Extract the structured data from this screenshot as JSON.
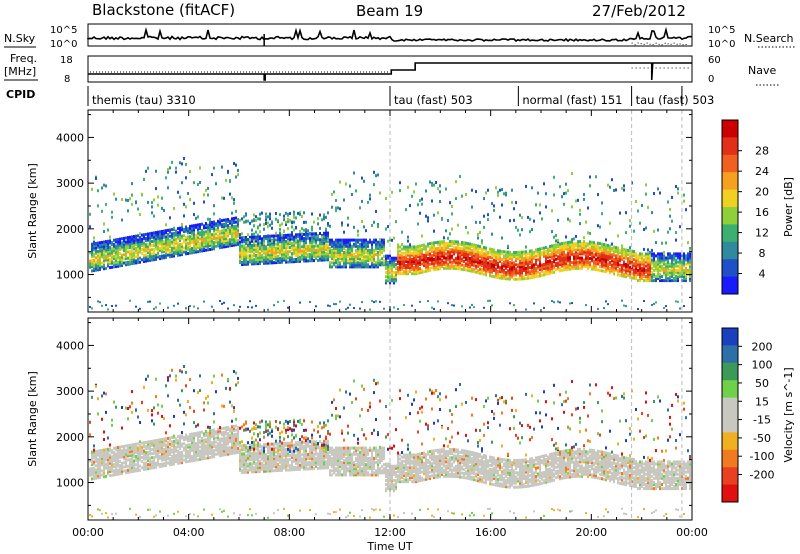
{
  "header": {
    "station": "Blackstone (fitACF)",
    "beam": "Beam 19",
    "date": "27/Feb/2012"
  },
  "top_panels": {
    "nsky_label": "N.Sky",
    "nsky_ticks": [
      "10^5",
      "10^0"
    ],
    "nsky_right_ticks": [
      "10^5",
      "10^0"
    ],
    "nsearch_label": "N.Search",
    "freq_label": "Freq.",
    "freq_unit": "[MHz]",
    "freq_ticks": [
      "18",
      "8"
    ],
    "nave_ticks": [
      "60",
      "0"
    ],
    "nave_label": "Nave",
    "cpid_label": "CPID"
  },
  "cpid_segments": [
    {
      "label": "themis (tau) 3310",
      "start": 0.0
    },
    {
      "label": "tau (fast) 503",
      "start": 12.0
    },
    {
      "label": "normal (fast) 151",
      "start": 17.1
    },
    {
      "label": "tau (fast) 503",
      "start": 21.6
    }
  ],
  "chart_data": [
    {
      "type": "heatmap",
      "name": "power",
      "ylabel": "Slant Range [km]",
      "ylim": [
        180,
        4600
      ],
      "yticks": [
        "1000",
        "2000",
        "3000",
        "4000"
      ],
      "xlim": [
        0,
        24
      ],
      "colorbar": {
        "label": "Power [dB]",
        "ticks": [
          "4",
          "8",
          "12",
          "16",
          "20",
          "24",
          "28"
        ],
        "colors": [
          "#1a1aff",
          "#1e50c8",
          "#2f8a9e",
          "#3cb070",
          "#8fd03a",
          "#f0d020",
          "#f5a020",
          "#f06020",
          "#e03018",
          "#cc0000"
        ]
      }
    },
    {
      "type": "heatmap",
      "name": "velocity",
      "ylabel": "Slant Range [km]",
      "ylim": [
        180,
        4600
      ],
      "yticks": [
        "1000",
        "2000",
        "3000",
        "4000"
      ],
      "xlim": [
        0,
        24
      ],
      "colorbar": {
        "label": "Velocity [m s^-1]",
        "ticks": [
          "200",
          "100",
          "50",
          "15",
          "-15",
          "-50",
          "-100",
          "-200"
        ],
        "colors": [
          "#1a3fbf",
          "#2f6fa8",
          "#3b9a58",
          "#6fd04a",
          "#c8c8c0",
          "#c8c8c0",
          "#f0b020",
          "#f07a20",
          "#e84020",
          "#e01010"
        ]
      }
    }
  ],
  "x_axis": {
    "ticks": [
      "00:00",
      "04:00",
      "08:00",
      "12:00",
      "16:00",
      "20:00",
      "00:00"
    ],
    "label": "Time UT"
  }
}
